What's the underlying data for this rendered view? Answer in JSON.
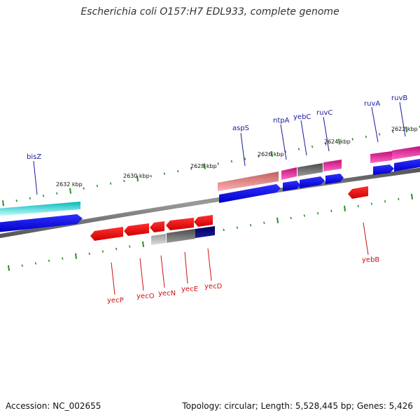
{
  "title": "Escherichia coli O157:H7 EDL933, complete genome",
  "footer": {
    "accession": "Accession: NC_002655",
    "summary": "Topology: circular; Length: 5,528,445 bp; Genes: 5,426"
  },
  "colors": {
    "backbone": "#8a8a8a",
    "tick": "#2e8b2e",
    "label_top": "#1a1a9a",
    "label_bottom": "#cc1111"
  },
  "scale_labels": [
    "2632 kbp",
    "2630 kbp",
    "2628 kbp",
    "2626 kbp",
    "2624 kbp",
    "2622 kbp"
  ],
  "genes_top": [
    "bisZ",
    "aspS",
    "ntpA",
    "yebC",
    "ruvC",
    "ruvA",
    "ruvB"
  ],
  "genes_bottom": [
    "yecP",
    "yecO",
    "yecN",
    "yecE",
    "yecD",
    "yebB"
  ]
}
